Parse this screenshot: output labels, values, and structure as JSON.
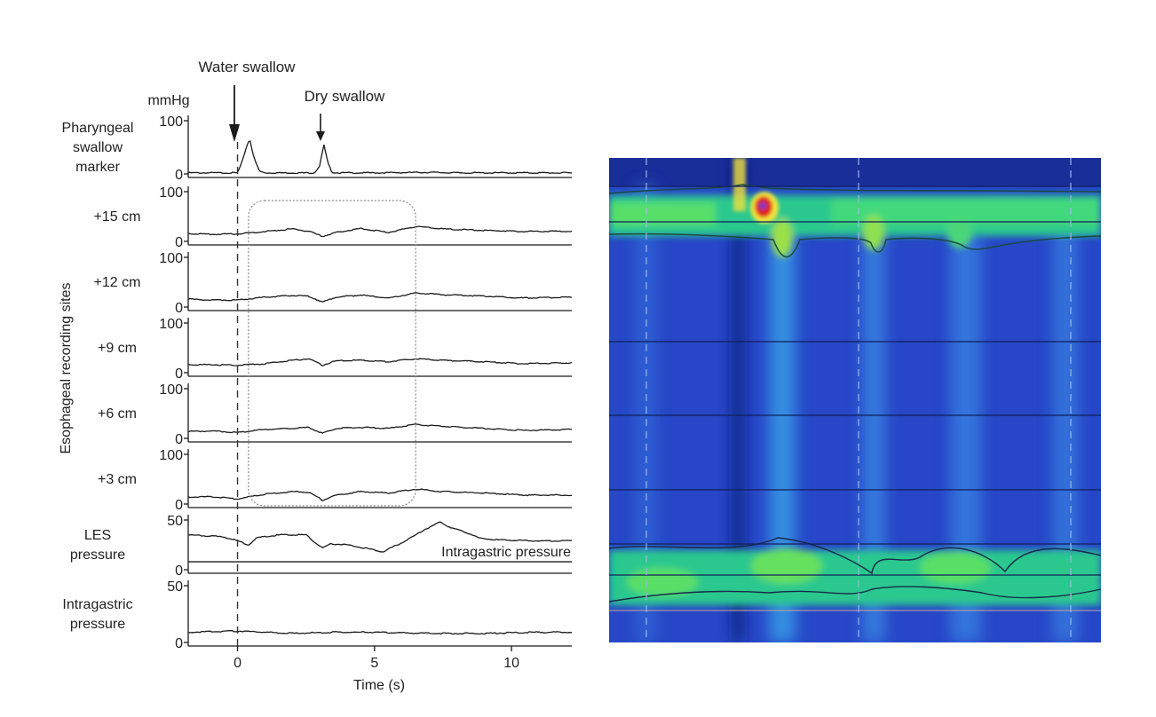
{
  "chart_data": [
    {
      "type": "line",
      "annotations": {
        "water_swallow": "Water swallow",
        "dry_swallow": "Dry swallow",
        "unit": "mmHg",
        "esophageal_group": "Esophageal recording sites",
        "intragastric_inline": "Intragastric pressure"
      },
      "xlabel": "Time  (s)",
      "xlim": [
        -1.8,
        12.2
      ],
      "xticks": [
        0,
        5,
        10
      ],
      "swallow_line_x": 0,
      "highlight_box_x": [
        0.4,
        6.5
      ],
      "panels": [
        {
          "label": [
            "Pharyngeal",
            "swallow",
            "marker"
          ],
          "ylim": [
            0,
            100
          ],
          "yticks": [
            0,
            100
          ],
          "x": [
            -1.8,
            0,
            0.15,
            0.35,
            0.45,
            0.6,
            0.8,
            1.0,
            2.8,
            3.0,
            3.15,
            3.3,
            3.45,
            3.7,
            5,
            7,
            8,
            10,
            12.2
          ],
          "y": [
            2,
            2,
            20,
            55,
            65,
            30,
            5,
            2,
            2,
            15,
            55,
            20,
            3,
            2,
            2,
            3,
            2,
            2,
            2
          ]
        },
        {
          "label": [
            "+15 cm"
          ],
          "ylim": [
            0,
            100
          ],
          "yticks": [
            0,
            100
          ],
          "x": [
            -1.8,
            -1,
            0,
            1,
            2,
            2.6,
            3.1,
            3.6,
            4.5,
            5.5,
            6.5,
            7.5,
            9,
            10.5,
            12.2
          ],
          "y": [
            16,
            14,
            15,
            20,
            25,
            20,
            10,
            18,
            26,
            18,
            30,
            25,
            22,
            20,
            20
          ]
        },
        {
          "label": [
            "+12 cm"
          ],
          "ylim": [
            0,
            100
          ],
          "yticks": [
            0,
            100
          ],
          "x": [
            -1.8,
            -1,
            0,
            1,
            2,
            2.6,
            3.1,
            3.6,
            4.5,
            5.5,
            6.5,
            7.5,
            9,
            10.5,
            12.2
          ],
          "y": [
            16,
            14,
            14,
            20,
            23,
            22,
            10,
            20,
            24,
            18,
            28,
            25,
            22,
            18,
            20
          ]
        },
        {
          "label": [
            "+9 cm"
          ],
          "ylim": [
            0,
            100
          ],
          "yticks": [
            0,
            100
          ],
          "x": [
            -1.8,
            -1,
            0,
            1,
            2,
            2.6,
            3.1,
            3.6,
            4.5,
            5.5,
            6.5,
            7.5,
            9,
            10.5,
            12.2
          ],
          "y": [
            16,
            16,
            15,
            18,
            25,
            28,
            15,
            24,
            25,
            22,
            28,
            25,
            22,
            18,
            20
          ]
        },
        {
          "label": [
            "+6 cm"
          ],
          "ylim": [
            0,
            100
          ],
          "yticks": [
            0,
            100
          ],
          "x": [
            -1.8,
            -1,
            0,
            1,
            2,
            2.6,
            3.1,
            3.6,
            4.5,
            5.5,
            6.5,
            7.5,
            9,
            10.5,
            12.2
          ],
          "y": [
            14,
            15,
            12,
            18,
            20,
            22,
            10,
            20,
            22,
            20,
            28,
            24,
            20,
            16,
            18
          ]
        },
        {
          "label": [
            "+3 cm"
          ],
          "ylim": [
            0,
            100
          ],
          "yticks": [
            0,
            100
          ],
          "x": [
            -1.8,
            -1,
            0,
            1,
            2,
            2.6,
            3.1,
            3.6,
            4.5,
            5.5,
            6.5,
            7.5,
            9,
            10.5,
            12.2
          ],
          "y": [
            14,
            15,
            10,
            20,
            25,
            24,
            8,
            18,
            25,
            22,
            30,
            25,
            22,
            18,
            18
          ]
        },
        {
          "label": [
            "LES",
            "pressure"
          ],
          "ylim": [
            0,
            50
          ],
          "yticks": [
            0,
            50
          ],
          "x": [
            -1.8,
            -0.5,
            0,
            0.4,
            0.7,
            1.5,
            2.5,
            2.8,
            3.1,
            3.4,
            4.0,
            4.6,
            5.3,
            6.2,
            6.8,
            7.4,
            7.8,
            8.4,
            8.8,
            9.5,
            11,
            12.2
          ],
          "y": [
            35,
            33,
            29,
            25,
            32,
            35,
            35,
            28,
            22,
            26,
            25,
            22,
            18,
            30,
            40,
            48,
            42,
            37,
            32,
            30,
            29,
            29
          ],
          "baseline": 8
        },
        {
          "label": [
            "Intragastric",
            "pressure"
          ],
          "ylim": [
            0,
            50
          ],
          "yticks": [
            0,
            50
          ],
          "x": [
            -1.8,
            0,
            2,
            3.5,
            5,
            7,
            9,
            11,
            12.2
          ],
          "y": [
            9,
            10,
            8,
            9,
            9,
            8,
            8,
            9,
            9
          ]
        }
      ]
    },
    {
      "type": "heatmap",
      "colors": {
        "low": "#12207a",
        "base": "#2a4fd0",
        "mid": "#3a8ee6",
        "green": "#33d27a",
        "yellow": "#f2e63c",
        "peak": "#e0201a"
      }
    }
  ]
}
